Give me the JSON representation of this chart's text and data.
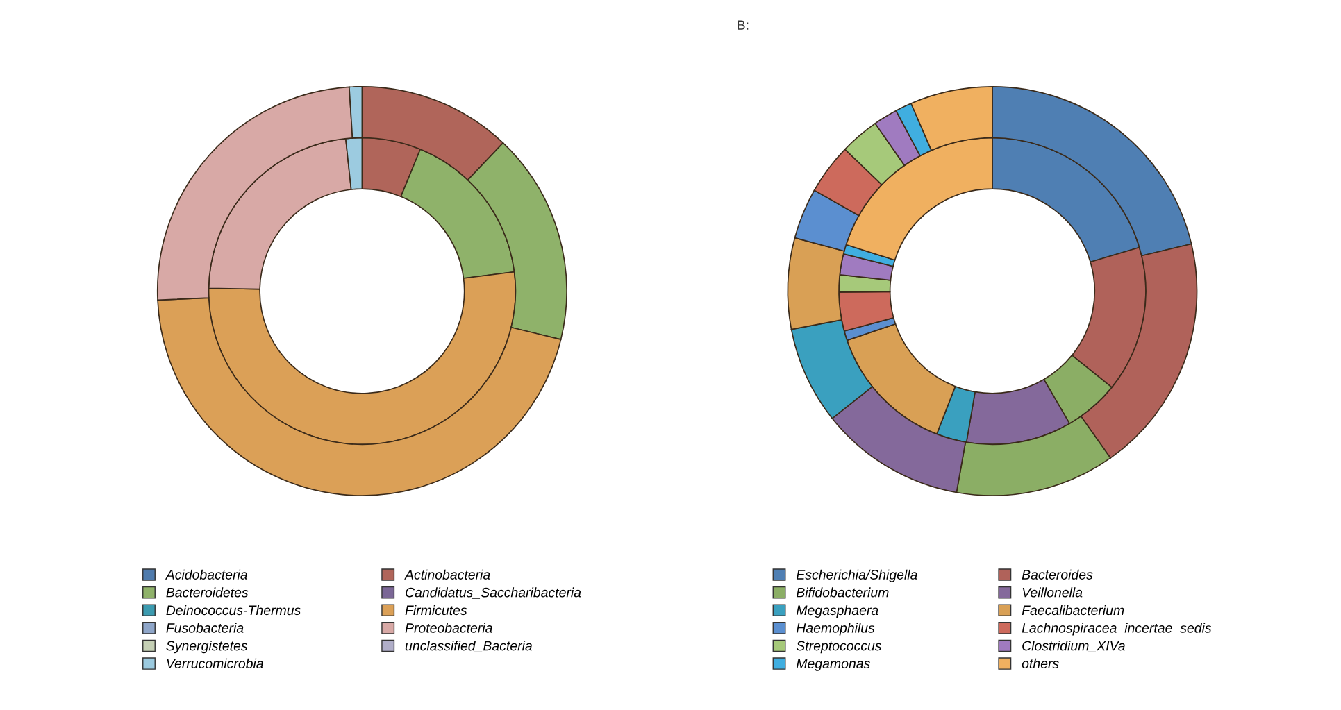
{
  "chart_data": [
    {
      "type": "donut",
      "categories": [
        "Acidobacteria",
        "Actinobacteria",
        "Bacteroidetes",
        "Candidatus_Saccharibacteria",
        "Deinococcus-Thermus",
        "Firmicutes",
        "Fusobacteria",
        "Proteobacteria",
        "Synergistetes",
        "unclassified_Bacteria",
        "Verrucomicrobia"
      ],
      "colors": [
        "#4f7bad",
        "#b0655a",
        "#8fb26a",
        "#7b6796",
        "#3c9bb0",
        "#dba057",
        "#8fa6c9",
        "#d8a9a6",
        "#c5d0b5",
        "#b0aec8",
        "#9ccbe0"
      ],
      "series": [
        {
          "values": [
            0,
            6.2,
            16.8,
            0,
            0,
            52.3,
            0,
            23.0,
            0,
            0,
            1.7
          ]
        },
        {
          "values": [
            0,
            12.1,
            16.7,
            0,
            0,
            45.5,
            0,
            24.7,
            0,
            0,
            1.0
          ]
        }
      ],
      "legend": "bottom"
    },
    {
      "type": "donut",
      "title": "B:",
      "categories": [
        "Escherichia/Shigella",
        "Bacteroides",
        "Bifidobacterium",
        "Veillonella",
        "Megasphaera",
        "Faecalibacterium",
        "Haemophilus",
        "Lachnospiracea_incertae_sedis",
        "Streptococcus",
        "Clostridium_XIVa",
        "Megamonas",
        "others"
      ],
      "colors": [
        "#4f7fb3",
        "#b0625a",
        "#8bae65",
        "#84699b",
        "#3aa0bf",
        "#d9a055",
        "#5b8fd0",
        "#cd6a5c",
        "#a6c97a",
        "#a07bc0",
        "#40aee0",
        "#f0b060"
      ],
      "series": [
        {
          "values": [
            20.4,
            15.4,
            5.8,
            11.1,
            3.2,
            13.9,
            1.0,
            4.1,
            1.8,
            2.2,
            1.0,
            20.1
          ]
        },
        {
          "values": [
            21.3,
            18.9,
            12.6,
            11.5,
            7.7,
            7.2,
            4.0,
            4.0,
            3.1,
            1.9,
            1.3,
            6.5
          ]
        }
      ],
      "legend": "bottom"
    }
  ]
}
